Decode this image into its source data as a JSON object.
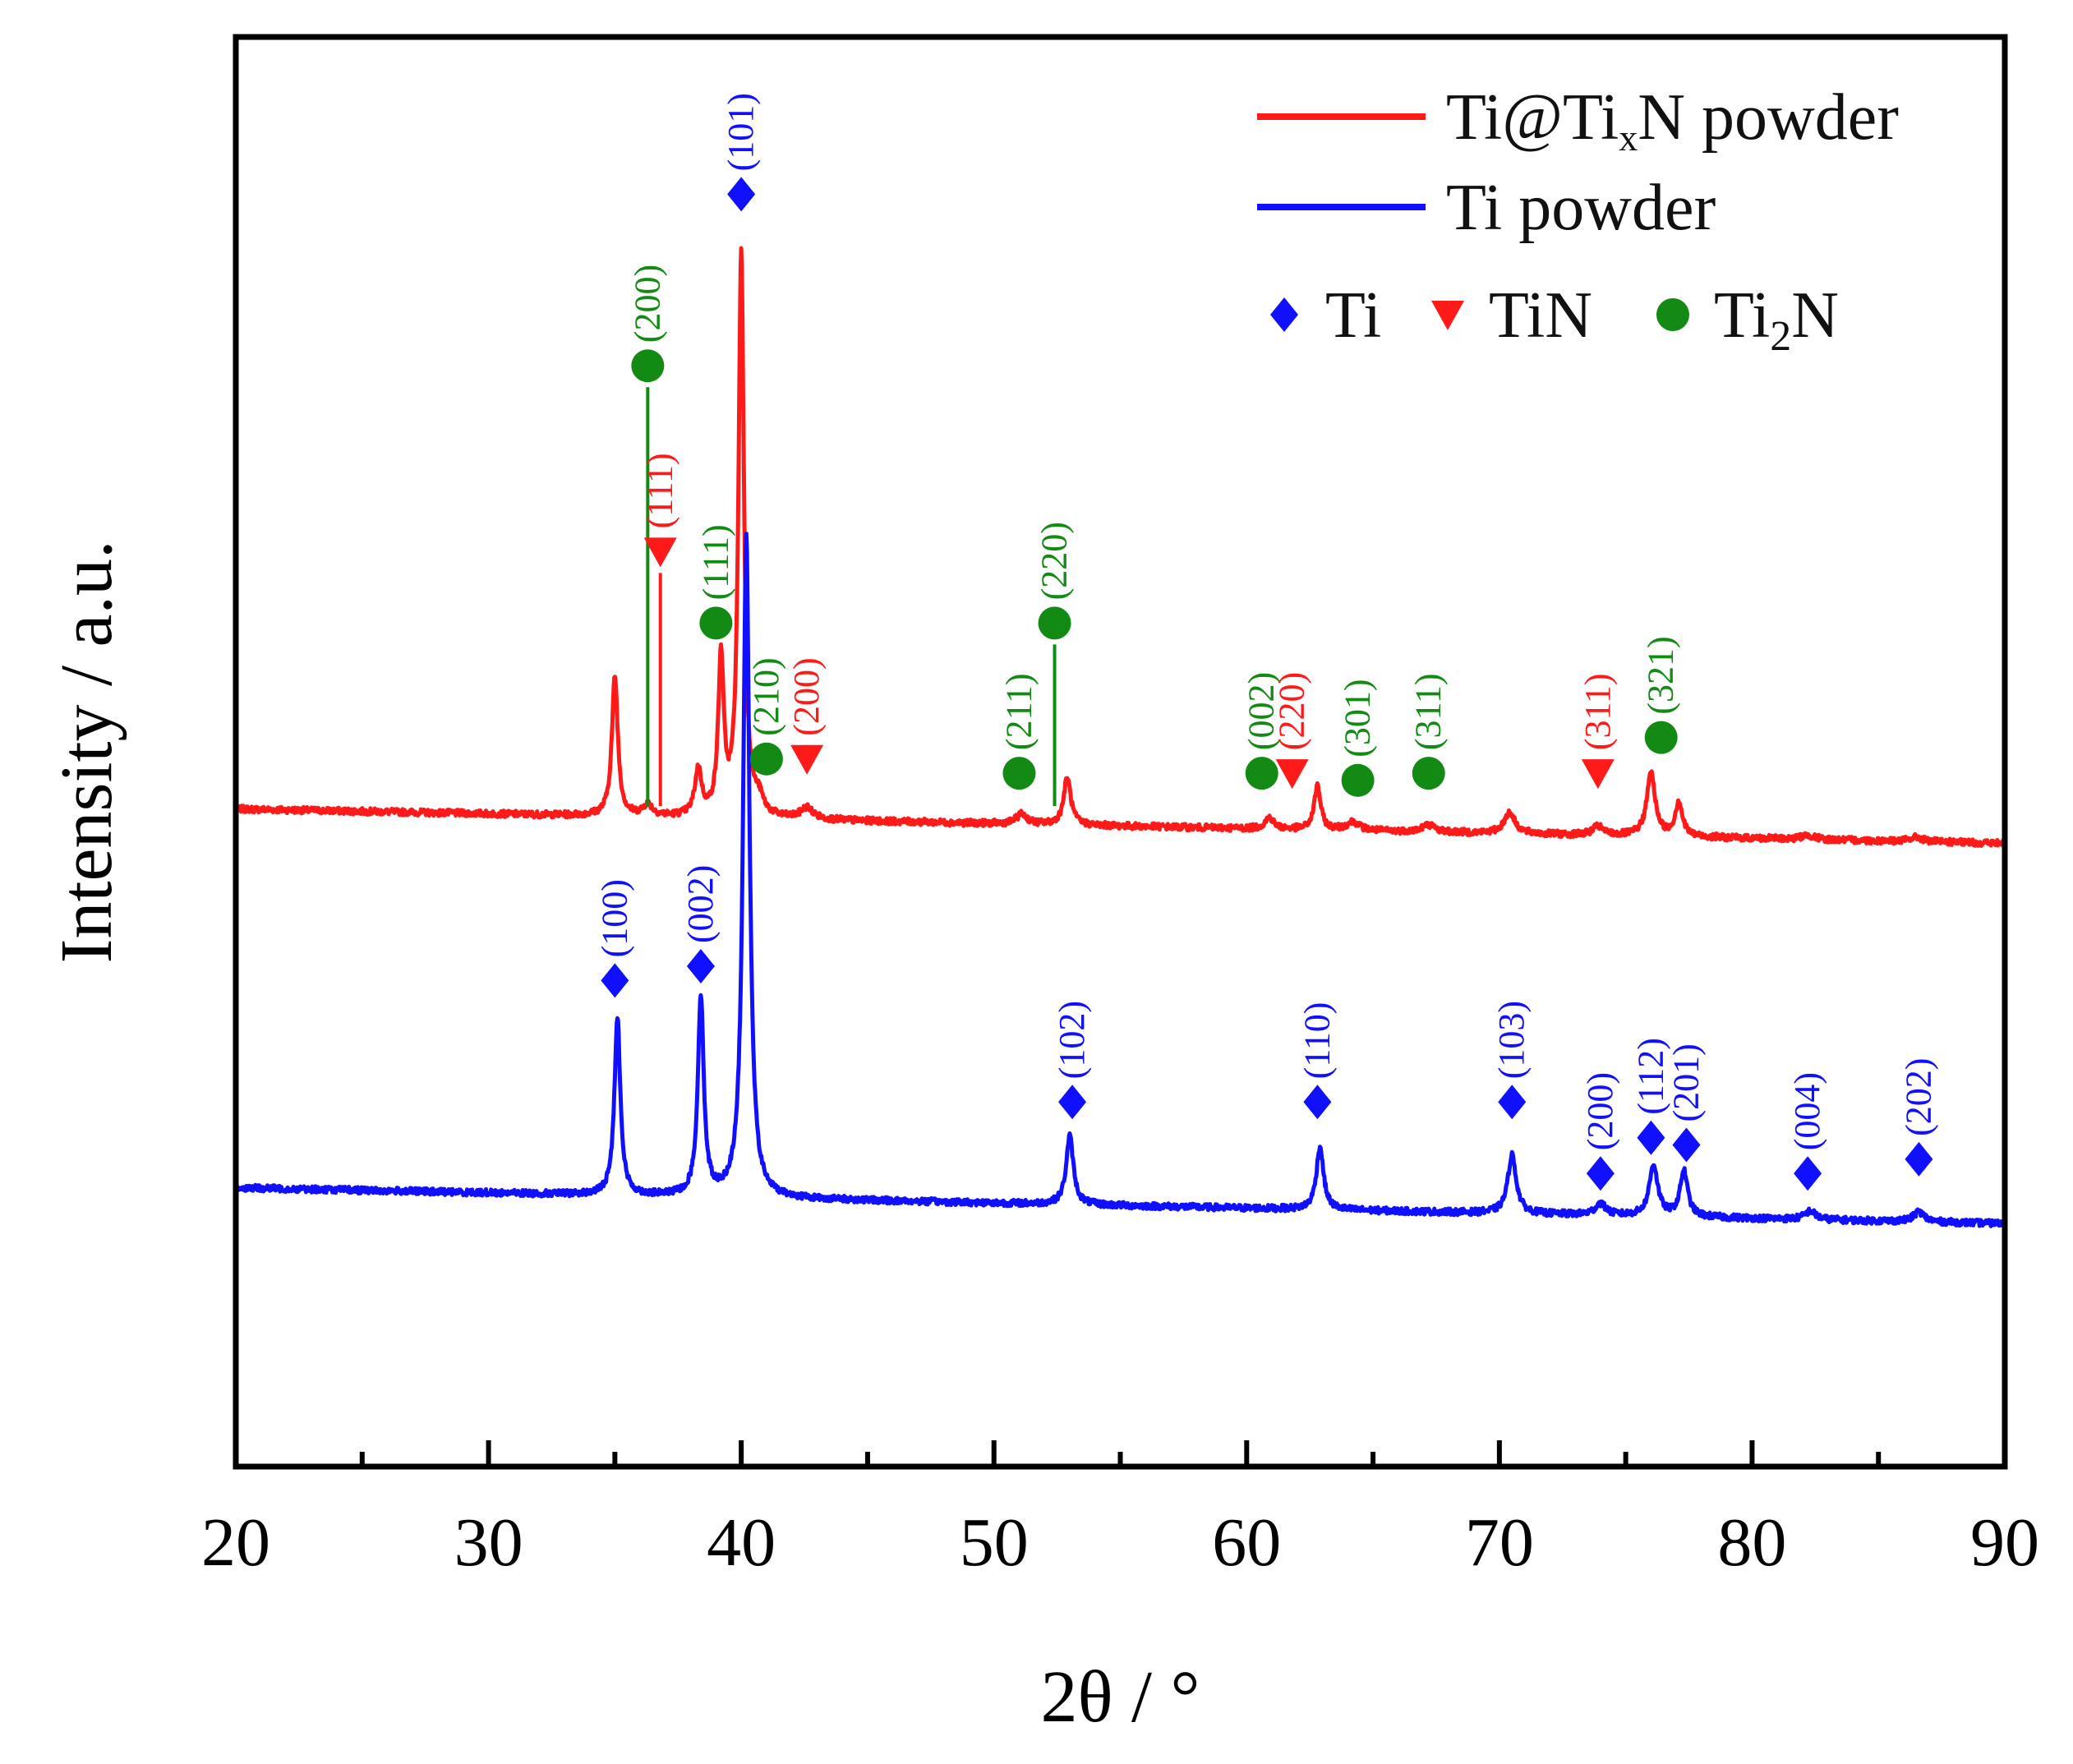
{
  "chart_data": {
    "type": "line",
    "title": "",
    "xlabel": "2θ / °",
    "ylabel": "Intensity / a.u.",
    "xlim": [
      20,
      90
    ],
    "ylim": [
      0,
      100
    ],
    "xticks": [
      20,
      30,
      40,
      50,
      60,
      70,
      80,
      90
    ],
    "xtick_labels": [
      "20",
      "30",
      "40",
      "50",
      "60",
      "70",
      "80",
      "90"
    ],
    "y_ticks_shown": false,
    "colors": {
      "ti": "#1010ff",
      "tin": "#ff1a1a",
      "ti2n": "#138a13",
      "axis": "#000000"
    },
    "legend": {
      "position": "top-right",
      "series": [
        {
          "label_main": "Ti@Ti",
          "label_sub": "x",
          "label_end": "N powder",
          "color": "#ff1a1a"
        },
        {
          "label_main": "Ti powder",
          "color": "#1010ff"
        }
      ],
      "phases": [
        {
          "symbol": "diamond",
          "label": "Ti",
          "color": "#1010ff"
        },
        {
          "symbol": "triangle-down",
          "label": "TiN",
          "color": "#ff1a1a"
        },
        {
          "symbol": "circle",
          "label_main": "Ti",
          "label_sub": "2",
          "label_end": "N",
          "color": "#138a13"
        }
      ]
    },
    "series": [
      {
        "name": "Ti@TixN powder",
        "color": "#ff1a1a",
        "baseline_start": 46.0,
        "baseline_end": 43.6,
        "peaks": [
          {
            "x": 35.0,
            "h": 9.8,
            "w": 0.14
          },
          {
            "x": 36.3,
            "h": 0.8,
            "w": 0.22
          },
          {
            "x": 38.3,
            "h": 3.2,
            "w": 0.16
          },
          {
            "x": 39.2,
            "h": 11.0,
            "w": 0.13
          },
          {
            "x": 40.0,
            "h": 39.5,
            "w": 0.13
          },
          {
            "x": 40.7,
            "h": 1.0,
            "w": 0.2
          },
          {
            "x": 42.6,
            "h": 0.8,
            "w": 0.28
          },
          {
            "x": 51.1,
            "h": 0.7,
            "w": 0.25
          },
          {
            "x": 52.9,
            "h": 3.3,
            "w": 0.17
          },
          {
            "x": 60.9,
            "h": 0.8,
            "w": 0.2
          },
          {
            "x": 62.8,
            "h": 3.1,
            "w": 0.15
          },
          {
            "x": 64.2,
            "h": 0.6,
            "w": 0.3
          },
          {
            "x": 67.2,
            "h": 0.5,
            "w": 0.3
          },
          {
            "x": 70.4,
            "h": 1.5,
            "w": 0.25
          },
          {
            "x": 73.9,
            "h": 0.6,
            "w": 0.25
          },
          {
            "x": 76.0,
            "h": 4.4,
            "w": 0.2
          },
          {
            "x": 77.1,
            "h": 2.4,
            "w": 0.17
          },
          {
            "x": 82.2,
            "h": 0.3,
            "w": 0.3
          },
          {
            "x": 86.5,
            "h": 0.3,
            "w": 0.3
          }
        ]
      },
      {
        "name": "Ti powder",
        "color": "#1010ff",
        "baseline_start": 19.5,
        "baseline_end": 17.0,
        "peaks": [
          {
            "x": 35.1,
            "h": 12.5,
            "w": 0.14
          },
          {
            "x": 38.4,
            "h": 14.0,
            "w": 0.14
          },
          {
            "x": 40.2,
            "h": 46.5,
            "w": 0.15
          },
          {
            "x": 53.0,
            "h": 4.8,
            "w": 0.17
          },
          {
            "x": 62.9,
            "h": 4.4,
            "w": 0.17
          },
          {
            "x": 70.5,
            "h": 4.1,
            "w": 0.2
          },
          {
            "x": 74.0,
            "h": 0.8,
            "w": 0.25
          },
          {
            "x": 76.1,
            "h": 3.6,
            "w": 0.2
          },
          {
            "x": 77.3,
            "h": 3.2,
            "w": 0.18
          },
          {
            "x": 82.3,
            "h": 0.6,
            "w": 0.25
          },
          {
            "x": 86.6,
            "h": 0.7,
            "w": 0.25
          }
        ]
      }
    ],
    "peak_annotations": [
      {
        "phase": "Ti2N",
        "hkl": "(200)",
        "x": 36.3,
        "y": 77.0,
        "leader_to": 46.2
      },
      {
        "phase": "TiN",
        "hkl": "(111)",
        "x": 36.8,
        "y": 64.0,
        "leader_to": 46.2
      },
      {
        "phase": "Ti2N",
        "hkl": "(111)",
        "x": 39.0,
        "y": 59.0
      },
      {
        "phase": "Ti2N",
        "hkl": "(210)",
        "x": 41.0,
        "y": 49.5
      },
      {
        "phase": "TiN",
        "hkl": "(200)",
        "x": 42.6,
        "y": 49.5
      },
      {
        "phase": "Ti2N",
        "hkl": "(211)",
        "x": 51.0,
        "y": 48.5
      },
      {
        "phase": "Ti2N",
        "hkl": "(220)",
        "x": 52.4,
        "y": 59.0,
        "leader_to": 46.2
      },
      {
        "phase": "Ti2N",
        "hkl": "(002)",
        "x": 60.6,
        "y": 48.5
      },
      {
        "phase": "TiN",
        "hkl": "(220)",
        "x": 61.8,
        "y": 48.5
      },
      {
        "phase": "Ti2N",
        "hkl": "(301)",
        "x": 64.4,
        "y": 48.0
      },
      {
        "phase": "Ti2N",
        "hkl": "(311)",
        "x": 67.2,
        "y": 48.5
      },
      {
        "phase": "TiN",
        "hkl": "(311)",
        "x": 73.9,
        "y": 48.5
      },
      {
        "phase": "Ti2N",
        "hkl": "(321)",
        "x": 76.4,
        "y": 51.0
      },
      {
        "phase": "Ti",
        "hkl": "(101)",
        "x": 40.0,
        "y": 89.0
      },
      {
        "phase": "Ti",
        "hkl": "(100)",
        "x": 35.0,
        "y": 34.0
      },
      {
        "phase": "Ti",
        "hkl": "(002)",
        "x": 38.4,
        "y": 35.0
      },
      {
        "phase": "Ti",
        "hkl": "(102)",
        "x": 53.1,
        "y": 25.5
      },
      {
        "phase": "Ti",
        "hkl": "(110)",
        "x": 62.8,
        "y": 25.5
      },
      {
        "phase": "Ti",
        "hkl": "(103)",
        "x": 70.5,
        "y": 25.5
      },
      {
        "phase": "Ti",
        "hkl": "(200)",
        "x": 74.0,
        "y": 20.5
      },
      {
        "phase": "Ti",
        "hkl": "(112)",
        "x": 76.0,
        "y": 23.0
      },
      {
        "phase": "Ti",
        "hkl": "(201)",
        "x": 77.4,
        "y": 22.5
      },
      {
        "phase": "Ti",
        "hkl": "(004)",
        "x": 82.2,
        "y": 20.5
      },
      {
        "phase": "Ti",
        "hkl": "(202)",
        "x": 86.6,
        "y": 21.5
      }
    ]
  }
}
